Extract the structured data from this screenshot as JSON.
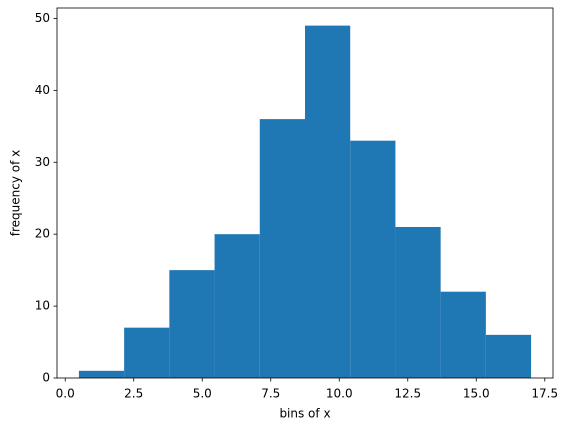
{
  "chart_data": {
    "type": "histogram",
    "x_label": "bins of x",
    "y_label": "frequency of x",
    "bins": [
      0.5,
      2.15,
      3.8,
      5.45,
      7.1,
      8.75,
      10.4,
      12.05,
      13.7,
      15.35,
      17.0
    ],
    "values": [
      1,
      7,
      15,
      20,
      36,
      49,
      33,
      21,
      12,
      6
    ],
    "color": "#1f77b4",
    "xlim": [
      -0.3,
      17.8
    ],
    "xticks": [
      {
        "value": 0,
        "label": "0.0"
      },
      {
        "value": 2.5,
        "label": "2.5"
      },
      {
        "value": 5,
        "label": "5.0"
      },
      {
        "value": 7.5,
        "label": "7.5"
      },
      {
        "value": 10,
        "label": "10.0"
      },
      {
        "value": 12.5,
        "label": "12.5"
      },
      {
        "value": 15,
        "label": "15.0"
      },
      {
        "value": 17.5,
        "label": "17.5"
      }
    ],
    "ylim": [
      0,
      51.45
    ],
    "yticks": [
      0,
      10,
      20,
      30,
      40,
      50
    ]
  }
}
